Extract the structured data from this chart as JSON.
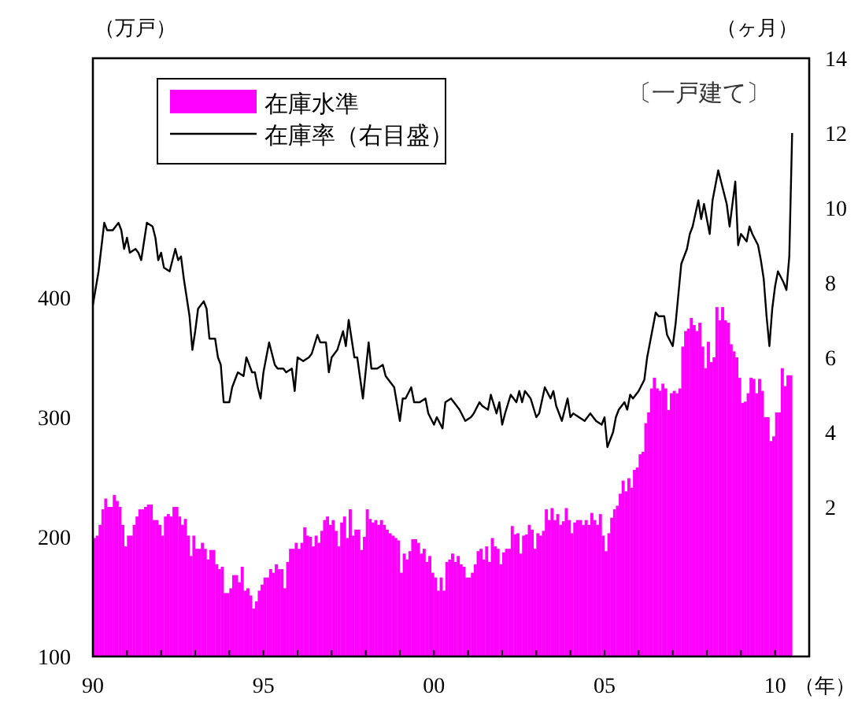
{
  "chart_data": {
    "type": "bar",
    "ylabel": "（万戸）",
    "y2label": "（ヶ月）",
    "xlabel": "（年）",
    "annotations": [
      "〔一戸建て〕"
    ],
    "legend": "top left",
    "xlim": [
      "1990",
      "2011"
    ],
    "ylim": [
      100,
      600
    ],
    "y2lim": [
      -2,
      14
    ],
    "yticks": [
      100,
      200,
      300,
      400
    ],
    "y2ticks": [
      2,
      4,
      6,
      8,
      10,
      12,
      14
    ],
    "xticks": [
      {
        "value": "1990",
        "label": "90"
      },
      {
        "value": "1991",
        "label": null
      },
      {
        "value": "1992",
        "label": null
      },
      {
        "value": "1993",
        "label": null
      },
      {
        "value": "1994",
        "label": null
      },
      {
        "value": "1995",
        "label": "95"
      },
      {
        "value": "1996",
        "label": null
      },
      {
        "value": "1997",
        "label": null
      },
      {
        "value": "1998",
        "label": null
      },
      {
        "value": "1999",
        "label": null
      },
      {
        "value": "2000",
        "label": "00"
      },
      {
        "value": "2001",
        "label": null
      },
      {
        "value": "2002",
        "label": null
      },
      {
        "value": "2003",
        "label": null
      },
      {
        "value": "2004",
        "label": null
      },
      {
        "value": "2005",
        "label": "05"
      },
      {
        "value": "2006",
        "label": null
      },
      {
        "value": "2007",
        "label": null
      },
      {
        "value": "2008",
        "label": null
      },
      {
        "value": "2009",
        "label": null
      },
      {
        "value": "2010",
        "label": "10"
      }
    ],
    "x": [
      "1990-01",
      "1990-02",
      "1990-03",
      "1990-04",
      "1990-05",
      "1990-06",
      "1990-07",
      "1990-08",
      "1990-09",
      "1990-10",
      "1990-11",
      "1990-12",
      "1991-01",
      "1991-02",
      "1991-03",
      "1991-04",
      "1991-05",
      "1991-06",
      "1991-07",
      "1991-08",
      "1991-09",
      "1991-10",
      "1991-11",
      "1991-12",
      "1992-01",
      "1992-02",
      "1992-03",
      "1992-04",
      "1992-05",
      "1992-06",
      "1992-07",
      "1992-08",
      "1992-09",
      "1992-10",
      "1992-11",
      "1992-12",
      "1993-01",
      "1993-02",
      "1993-03",
      "1993-04",
      "1993-05",
      "1993-06",
      "1993-07",
      "1993-08",
      "1993-09",
      "1993-10",
      "1993-11",
      "1993-12",
      "1994-01",
      "1994-02",
      "1994-03",
      "1994-04",
      "1994-05",
      "1994-06",
      "1994-07",
      "1994-08",
      "1994-09",
      "1994-10",
      "1994-11",
      "1994-12",
      "1995-01",
      "1995-02",
      "1995-03",
      "1995-04",
      "1995-05",
      "1995-06",
      "1995-07",
      "1995-08",
      "1995-09",
      "1995-10",
      "1995-11",
      "1995-12",
      "1996-01",
      "1996-02",
      "1996-03",
      "1996-04",
      "1996-05",
      "1996-06",
      "1996-07",
      "1996-08",
      "1996-09",
      "1996-10",
      "1996-11",
      "1996-12",
      "1997-01",
      "1997-02",
      "1997-03",
      "1997-04",
      "1997-05",
      "1997-06",
      "1997-07",
      "1997-08",
      "1997-09",
      "1997-10",
      "1997-11",
      "1997-12",
      "1998-01",
      "1998-02",
      "1998-03",
      "1998-04",
      "1998-05",
      "1998-06",
      "1998-07",
      "1998-08",
      "1998-09",
      "1998-10",
      "1998-11",
      "1998-12",
      "1999-01",
      "1999-02",
      "1999-03",
      "1999-04",
      "1999-05",
      "1999-06",
      "1999-07",
      "1999-08",
      "1999-09",
      "1999-10",
      "1999-11",
      "1999-12",
      "2000-01",
      "2000-02",
      "2000-03",
      "2000-04",
      "2000-05",
      "2000-06",
      "2000-07",
      "2000-08",
      "2000-09",
      "2000-10",
      "2000-11",
      "2000-12",
      "2001-01",
      "2001-02",
      "2001-03",
      "2001-04",
      "2001-05",
      "2001-06",
      "2001-07",
      "2001-08",
      "2001-09",
      "2001-10",
      "2001-11",
      "2001-12",
      "2002-01",
      "2002-02",
      "2002-03",
      "2002-04",
      "2002-05",
      "2002-06",
      "2002-07",
      "2002-08",
      "2002-09",
      "2002-10",
      "2002-11",
      "2002-12",
      "2003-01",
      "2003-02",
      "2003-03",
      "2003-04",
      "2003-05",
      "2003-06",
      "2003-07",
      "2003-08",
      "2003-09",
      "2003-10",
      "2003-11",
      "2003-12",
      "2004-01",
      "2004-02",
      "2004-03",
      "2004-04",
      "2004-05",
      "2004-06",
      "2004-07",
      "2004-08",
      "2004-09",
      "2004-10",
      "2004-11",
      "2004-12",
      "2005-01",
      "2005-02",
      "2005-03",
      "2005-04",
      "2005-05",
      "2005-06",
      "2005-07",
      "2005-08",
      "2005-09",
      "2005-10",
      "2005-11",
      "2005-12",
      "2006-01",
      "2006-02",
      "2006-03",
      "2006-04",
      "2006-05",
      "2006-06",
      "2006-07",
      "2006-08",
      "2006-09",
      "2006-10",
      "2006-11",
      "2006-12",
      "2007-01",
      "2007-02",
      "2007-03",
      "2007-04",
      "2007-05",
      "2007-06",
      "2007-07",
      "2007-08",
      "2007-09",
      "2007-10",
      "2007-11",
      "2007-12",
      "2008-01",
      "2008-02",
      "2008-03",
      "2008-04",
      "2008-05",
      "2008-06",
      "2008-07",
      "2008-08",
      "2008-09",
      "2008-10",
      "2008-11",
      "2008-12",
      "2009-01",
      "2009-02",
      "2009-03",
      "2009-04",
      "2009-05",
      "2009-06",
      "2009-07",
      "2009-08",
      "2009-09",
      "2009-10",
      "2009-11",
      "2009-12",
      "2010-01",
      "2010-02",
      "2010-03",
      "2010-04",
      "2010-05",
      "2010-06"
    ],
    "series": [
      {
        "name": "在庫水準",
        "color": "#ff00ff",
        "values": [
          199,
          201,
          210,
          223,
          232,
          225,
          225,
          235,
          230,
          225,
          210,
          192,
          201,
          201,
          210,
          217,
          223,
          223,
          225,
          227,
          227,
          214,
          214,
          210,
          201,
          217,
          219,
          217,
          225,
          225,
          217,
          210,
          215,
          201,
          184,
          201,
          190,
          190,
          195,
          190,
          181,
          189,
          189,
          177,
          173,
          175,
          153,
          153,
          157,
          168,
          168,
          162,
          175,
          155,
          157,
          151,
          140,
          146,
          155,
          160,
          166,
          166,
          173,
          170,
          177,
          173,
          173,
          157,
          179,
          190,
          190,
          195,
          190,
          195,
          208,
          201,
          200,
          192,
          201,
          195,
          205,
          214,
          217,
          210,
          214,
          205,
          192,
          212,
          217,
          199,
          223,
          201,
          206,
          206,
          189,
          200,
          223,
          215,
          212,
          214,
          210,
          214,
          210,
          206,
          203,
          201,
          199,
          197,
          170,
          186,
          181,
          188,
          198,
          198,
          195,
          186,
          190,
          179,
          184,
          170,
          166,
          155,
          166,
          155,
          179,
          181,
          186,
          179,
          184,
          177,
          175,
          166,
          166,
          170,
          177,
          188,
          190,
          181,
          192,
          179,
          199,
          192,
          190,
          177,
          187,
          190,
          190,
          209,
          202,
          203,
          186,
          201,
          202,
          210,
          206,
          190,
          203,
          201,
          205,
          223,
          214,
          224,
          214,
          219,
          210,
          213,
          224,
          214,
          203,
          212,
          214,
          214,
          210,
          214,
          210,
          220,
          214,
          210,
          219,
          201,
          188,
          203,
          216,
          223,
          226,
          236,
          247,
          238,
          249,
          241,
          256,
          258,
          269,
          271,
          295,
          304,
          324,
          333,
          324,
          322,
          328,
          324,
          306,
          320,
          322,
          320,
          324,
          359,
          372,
          374,
          383,
          377,
          372,
          379,
          359,
          341,
          363,
          346,
          350,
          392,
          381,
          392,
          381,
          379,
          361,
          355,
          350,
          333,
          312,
          313,
          320,
          333,
          332,
          320,
          332,
          322,
          300,
          300,
          280,
          284,
          304,
          304,
          341,
          326,
          335,
          335
        ]
      },
      {
        "name": "在庫率（右目盛）",
        "type": "line",
        "axis": "y2",
        "color": "#000000",
        "x": [
          "1990-01",
          "1990-03",
          "1990-05",
          "1990-06",
          "1990-08",
          "1990-10",
          "1990-11",
          "1990-12",
          "1991-01",
          "1991-02",
          "1991-04",
          "1991-05",
          "1991-06",
          "1991-08",
          "1991-10",
          "1991-11",
          "1991-12",
          "1992-01",
          "1992-02",
          "1992-04",
          "1992-05",
          "1992-06",
          "1992-07",
          "1992-08",
          "1992-09",
          "1992-11",
          "1992-12",
          "1993-01",
          "1993-02",
          "1993-04",
          "1993-05",
          "1993-06",
          "1993-08",
          "1993-09",
          "1993-10",
          "1993-11",
          "1994-01",
          "1994-02",
          "1994-04",
          "1994-06",
          "1994-07",
          "1994-09",
          "1994-10",
          "1994-11",
          "1994-12",
          "1995-01",
          "1995-03",
          "1995-05",
          "1995-06",
          "1995-08",
          "1995-09",
          "1995-11",
          "1995-12",
          "1996-01",
          "1996-03",
          "1996-05",
          "1996-06",
          "1996-08",
          "1996-09",
          "1996-11",
          "1996-12",
          "1997-01",
          "1997-03",
          "1997-05",
          "1997-06",
          "1997-07",
          "1997-09",
          "1997-10",
          "1997-12",
          "1998-02",
          "1998-03",
          "1998-05",
          "1998-07",
          "1998-08",
          "1998-10",
          "1998-11",
          "1999-01",
          "1999-02",
          "1999-03",
          "1999-05",
          "1999-06",
          "1999-08",
          "1999-10",
          "1999-11",
          "2000-01",
          "2000-02",
          "2000-04",
          "2000-05",
          "2000-07",
          "2000-08",
          "2000-10",
          "2000-12",
          "2001-02",
          "2001-03",
          "2001-05",
          "2001-06",
          "2001-08",
          "2001-09",
          "2001-11",
          "2001-12",
          "2002-01",
          "2002-02",
          "2002-04",
          "2002-06",
          "2002-07",
          "2002-08",
          "2002-09",
          "2002-11",
          "2003-01",
          "2003-02",
          "2003-04",
          "2003-06",
          "2003-07",
          "2003-08",
          "2003-10",
          "2003-12",
          "2004-01",
          "2004-02",
          "2004-04",
          "2004-06",
          "2004-08",
          "2004-10",
          "2004-12",
          "2005-01",
          "2005-02",
          "2005-04",
          "2005-05",
          "2005-06",
          "2005-08",
          "2005-09",
          "2005-10",
          "2005-11",
          "2006-01",
          "2006-03",
          "2006-04",
          "2006-05",
          "2006-07",
          "2006-08",
          "2006-10",
          "2006-11",
          "2007-01",
          "2007-02",
          "2007-03",
          "2007-04",
          "2007-06",
          "2007-07",
          "2007-08",
          "2007-10",
          "2007-11",
          "2007-12",
          "2008-02",
          "2008-03",
          "2008-04",
          "2008-05",
          "2008-07",
          "2008-08",
          "2008-09",
          "2008-11",
          "2008-12",
          "2009-01",
          "2009-03",
          "2009-04",
          "2009-05",
          "2009-07",
          "2009-08",
          "2009-09",
          "2009-10",
          "2009-11",
          "2009-12",
          "2010-01",
          "2010-02",
          "2010-04",
          "2010-05",
          "2010-06",
          "2010-07"
        ],
        "values": [
          7.4,
          8.3,
          9.6,
          9.4,
          9.4,
          9.6,
          9.4,
          8.9,
          9.2,
          8.8,
          8.9,
          8.8,
          8.6,
          9.6,
          9.5,
          9.2,
          8.6,
          8.8,
          8.4,
          8.3,
          8.6,
          8.9,
          8.6,
          8.7,
          8.1,
          7.1,
          6.2,
          6.7,
          7.3,
          7.5,
          7.3,
          6.5,
          6.5,
          6.0,
          5.8,
          4.8,
          4.8,
          5.2,
          5.6,
          5.5,
          6.0,
          5.6,
          5.6,
          5.2,
          4.9,
          5.6,
          6.4,
          5.8,
          5.7,
          5.7,
          5.6,
          5.7,
          5.1,
          6.0,
          5.9,
          6.0,
          6.1,
          6.6,
          6.4,
          6.4,
          5.6,
          6.0,
          6.2,
          6.7,
          6.3,
          7.0,
          6.0,
          6.0,
          4.9,
          6.4,
          5.7,
          5.7,
          5.8,
          5.5,
          5.3,
          5.2,
          4.3,
          4.9,
          4.9,
          5.2,
          4.8,
          4.8,
          4.9,
          4.5,
          4.2,
          4.4,
          4.1,
          4.8,
          4.9,
          4.8,
          4.6,
          4.3,
          4.4,
          4.5,
          4.8,
          4.7,
          4.6,
          5.0,
          4.5,
          4.8,
          4.2,
          4.5,
          5.0,
          4.8,
          5.1,
          4.8,
          5.1,
          4.9,
          4.4,
          4.5,
          5.2,
          4.9,
          5.1,
          4.7,
          4.3,
          4.9,
          4.4,
          4.5,
          4.4,
          4.3,
          4.5,
          4.3,
          4.2,
          4.4,
          3.6,
          4.0,
          4.4,
          4.6,
          4.8,
          4.6,
          5.0,
          4.9,
          5.1,
          5.4,
          6.0,
          6.4,
          7.2,
          7.1,
          7.1,
          6.6,
          6.3,
          6.9,
          7.7,
          8.5,
          8.9,
          9.3,
          9.5,
          10.2,
          9.7,
          10.1,
          9.3,
          10.2,
          10.6,
          11.0,
          10.4,
          10.1,
          9.5,
          10.7,
          9.0,
          9.3,
          9.1,
          9.5,
          9.3,
          9.0,
          8.6,
          8.1,
          7.1,
          6.3,
          7.3,
          7.9,
          8.3,
          8.0,
          7.8,
          8.7,
          12.0
        ]
      }
    ]
  }
}
